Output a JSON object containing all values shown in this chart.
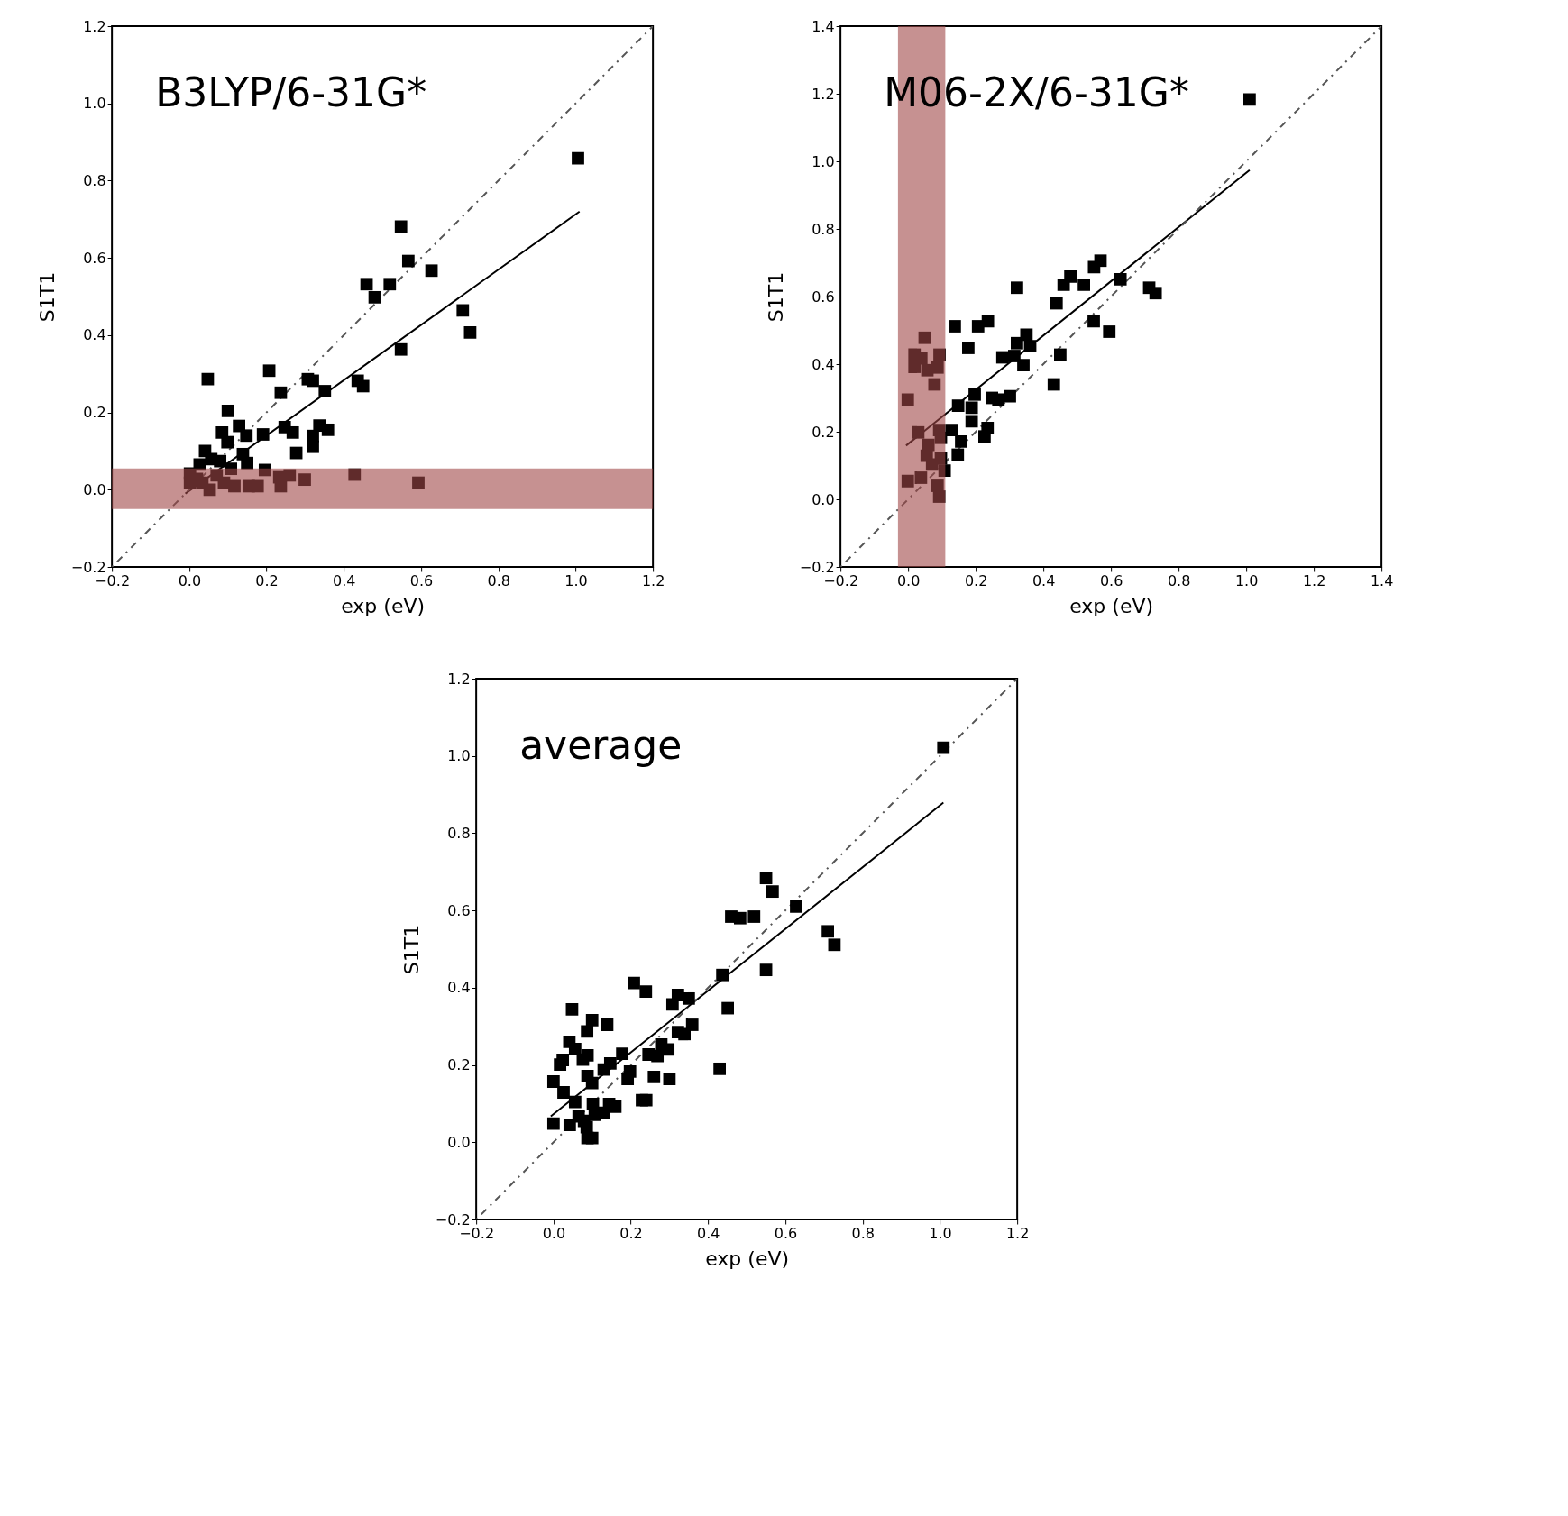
{
  "chart_data": [
    {
      "type": "scatter",
      "title": "B3LYP/6-31G*",
      "xlabel": "exp (eV)",
      "ylabel": "S1T1",
      "grid": false,
      "xlim": [
        -0.2,
        1.2
      ],
      "ylim": [
        -0.2,
        1.2
      ],
      "xticks": [
        {
          "value": -0.2,
          "label": "−0.2"
        },
        {
          "value": 0.0,
          "label": "0.0"
        },
        0.2,
        0.4,
        0.6,
        0.8,
        {
          "value": 1.0,
          "label": "1.0"
        },
        1.2
      ],
      "yticks": [
        {
          "value": -0.2,
          "label": "−0.2"
        },
        {
          "value": 0.0,
          "label": "0.0"
        },
        0.2,
        0.4,
        0.6,
        0.8,
        {
          "value": 1.0,
          "label": "1.0"
        },
        1.2
      ],
      "bands": [
        {
          "axis": "y",
          "from": -0.05,
          "to": 0.055,
          "color": "#a04848"
        }
      ],
      "series": [
        {
          "type": "scatter",
          "marker": "square",
          "color": "#000000",
          "x": [
            1.006,
            0.548,
            0.567,
            0.627,
            0.459,
            0.519,
            0.48,
            0.708,
            0.727,
            0.548,
            0.048,
            0.207,
            0.237,
            0.307,
            0.32,
            0.351,
            0.436,
            0.45,
            0.1,
            0.129,
            0.148,
            0.085,
            0.099,
            0.191,
            0.247,
            0.268,
            0.277,
            0.32,
            0.32,
            0.337,
            0.359,
            0.041,
            0.139,
            0.15,
            0.027,
            0.002,
            0.002,
            0.057,
            0.08,
            0.108,
            0.02,
            0.053,
            0.09,
            0.117,
            0.196,
            0.233,
            0.26,
            0.237,
            0.154,
            0.177,
            0.299,
            0.428,
            0.593,
            0.034,
            0.071
          ],
          "values": [
            0.858,
            0.681,
            0.592,
            0.567,
            0.532,
            0.532,
            0.498,
            0.464,
            0.407,
            0.363,
            0.286,
            0.308,
            0.251,
            0.286,
            0.282,
            0.255,
            0.282,
            0.268,
            0.204,
            0.165,
            0.14,
            0.148,
            0.123,
            0.143,
            0.162,
            0.148,
            0.095,
            0.139,
            0.111,
            0.166,
            0.155,
            0.1,
            0.092,
            0.069,
            0.065,
            0.042,
            0.018,
            0.079,
            0.074,
            0.054,
            0.028,
            0.0,
            0.018,
            0.009,
            0.051,
            0.032,
            0.037,
            0.009,
            0.009,
            0.009,
            0.026,
            0.039,
            0.018,
            0.018,
            0.037
          ]
        },
        {
          "type": "line",
          "color": "#000000",
          "line_style": "solid",
          "x": [
            -0.01,
            1.01
          ],
          "values": [
            -0.01,
            0.72
          ]
        },
        {
          "type": "line",
          "color": "#555555",
          "line_style": "dotted",
          "x": [
            -0.2,
            1.2
          ],
          "values": [
            -0.2,
            1.2
          ]
        }
      ]
    },
    {
      "type": "scatter",
      "title": "M06-2X/6-31G*",
      "xlabel": "exp (eV)",
      "ylabel": "S1T1",
      "grid": false,
      "xlim": [
        -0.2,
        1.4
      ],
      "ylim": [
        -0.2,
        1.4
      ],
      "xticks": [
        {
          "value": -0.2,
          "label": "−0.2"
        },
        {
          "value": 0.0,
          "label": "0.0"
        },
        0.2,
        0.4,
        0.6,
        0.8,
        {
          "value": 1.0,
          "label": "1.0"
        },
        1.2,
        1.4
      ],
      "yticks": [
        {
          "value": -0.2,
          "label": "−0.2"
        },
        {
          "value": 0.0,
          "label": "0.0"
        },
        0.2,
        0.4,
        0.6,
        0.8,
        {
          "value": 1.0,
          "label": "1.0"
        },
        1.2,
        1.4
      ],
      "bands": [
        {
          "axis": "x",
          "from": -0.03,
          "to": 0.11,
          "color": "#a04848"
        }
      ],
      "series": [
        {
          "type": "scatter",
          "marker": "square",
          "color": "#000000",
          "x": [
            1.01,
            0.569,
            0.55,
            0.48,
            0.46,
            0.52,
            0.628,
            0.322,
            0.713,
            0.732,
            0.439,
            0.549,
            0.595,
            0.138,
            0.207,
            0.236,
            0.049,
            0.178,
            0.35,
            0.322,
            0.361,
            0.093,
            0.019,
            0.039,
            0.019,
            0.057,
            0.087,
            0.078,
            -0.001,
            0.45,
            0.279,
            0.314,
            0.341,
            0.431,
            0.197,
            0.248,
            0.267,
            0.301,
            0.148,
            0.188,
            0.188,
            0.235,
            0.226,
            0.03,
            0.092,
            0.129,
            0.157,
            0.06,
            0.097,
            0.055,
            0.147,
            0.097,
            0.071,
            0.108,
            0.038,
            -0.001,
            0.087,
            0.092
          ],
          "values": [
            1.183,
            0.706,
            0.687,
            0.659,
            0.635,
            0.635,
            0.651,
            0.626,
            0.626,
            0.61,
            0.58,
            0.527,
            0.496,
            0.512,
            0.512,
            0.527,
            0.478,
            0.448,
            0.487,
            0.462,
            0.453,
            0.428,
            0.428,
            0.417,
            0.392,
            0.382,
            0.39,
            0.34,
            0.295,
            0.428,
            0.42,
            0.424,
            0.397,
            0.34,
            0.31,
            0.3,
            0.295,
            0.305,
            0.277,
            0.271,
            0.231,
            0.211,
            0.186,
            0.198,
            0.205,
            0.205,
            0.171,
            0.161,
            0.182,
            0.129,
            0.132,
            0.121,
            0.103,
            0.085,
            0.064,
            0.054,
            0.04,
            0.008
          ]
        },
        {
          "type": "line",
          "color": "#000000",
          "line_style": "solid",
          "x": [
            -0.006,
            1.01
          ],
          "values": [
            0.159,
            0.974
          ]
        },
        {
          "type": "line",
          "color": "#555555",
          "line_style": "dotted",
          "x": [
            -0.2,
            1.4
          ],
          "values": [
            -0.2,
            1.4
          ]
        }
      ]
    },
    {
      "type": "scatter",
      "title": "average",
      "xlabel": "exp (eV)",
      "ylabel": "S1T1",
      "grid": false,
      "xlim": [
        -0.2,
        1.2
      ],
      "ylim": [
        -0.2,
        1.2
      ],
      "xticks": [
        {
          "value": -0.2,
          "label": "−0.2"
        },
        {
          "value": 0.0,
          "label": "0.0"
        },
        0.2,
        0.4,
        0.6,
        0.8,
        {
          "value": 1.0,
          "label": "1.0"
        },
        1.2
      ],
      "yticks": [
        {
          "value": -0.2,
          "label": "−0.2"
        },
        {
          "value": 0.0,
          "label": "0.0"
        },
        0.2,
        0.4,
        0.6,
        0.8,
        {
          "value": 1.0,
          "label": "1.0"
        },
        1.2
      ],
      "series": [
        {
          "type": "scatter",
          "marker": "square",
          "color": "#000000",
          "x": [
            1.009,
            0.55,
            0.567,
            0.628,
            0.46,
            0.483,
            0.519,
            0.71,
            0.727,
            0.55,
            0.437,
            0.451,
            0.43,
            0.208,
            0.239,
            0.322,
            0.35,
            0.308,
            0.048,
            0.1,
            0.139,
            0.087,
            0.359,
            0.322,
            0.339,
            0.041,
            0.056,
            0.088,
            0.076,
            0.024,
            0.017,
            0.178,
            0.279,
            0.297,
            0.246,
            0.269,
            0.147,
            0.13,
            0.198,
            0.192,
            0.088,
            0.1,
            0.26,
            0.3,
            0.0,
            0.026,
            0.229,
            0.24,
            0.056,
            0.102,
            0.16,
            0.144,
            0.13,
            0.107,
            0.065,
            0.0,
            0.042,
            0.086,
            0.079,
            0.088,
            0.1
          ],
          "values": [
            1.021,
            0.684,
            0.649,
            0.61,
            0.584,
            0.58,
            0.584,
            0.546,
            0.511,
            0.446,
            0.433,
            0.347,
            0.19,
            0.412,
            0.39,
            0.381,
            0.372,
            0.357,
            0.344,
            0.316,
            0.304,
            0.287,
            0.304,
            0.285,
            0.28,
            0.26,
            0.241,
            0.225,
            0.214,
            0.213,
            0.201,
            0.229,
            0.253,
            0.24,
            0.227,
            0.223,
            0.204,
            0.188,
            0.183,
            0.164,
            0.171,
            0.153,
            0.169,
            0.164,
            0.157,
            0.129,
            0.109,
            0.109,
            0.104,
            0.099,
            0.092,
            0.099,
            0.076,
            0.071,
            0.067,
            0.048,
            0.045,
            0.039,
            0.055,
            0.011,
            0.011
          ]
        },
        {
          "type": "line",
          "color": "#000000",
          "line_style": "solid",
          "x": [
            -0.007,
            1.009
          ],
          "values": [
            0.067,
            0.879
          ]
        },
        {
          "type": "line",
          "color": "#555555",
          "line_style": "dotted",
          "x": [
            -0.2,
            1.2
          ],
          "values": [
            -0.2,
            1.2
          ]
        }
      ]
    }
  ]
}
